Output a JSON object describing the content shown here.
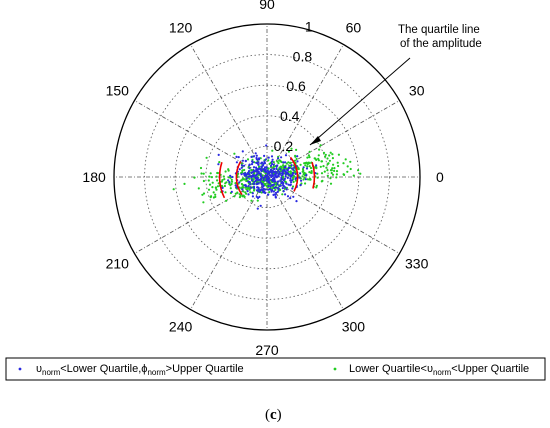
{
  "chart_data": {
    "type": "scatter",
    "projection": "polar",
    "title": "",
    "angular_ticks": [
      "0",
      "30",
      "60",
      "90",
      "120",
      "150",
      "180",
      "210",
      "240",
      "270",
      "300",
      "330"
    ],
    "radial_ticks": [
      "0.2",
      "0.4",
      "0.6",
      "0.8",
      "1"
    ],
    "rlim": [
      0,
      1
    ],
    "grid": true,
    "annotation": {
      "line1": "The quartile line",
      "line2": "of the amplitude",
      "quartile_radii": [
        0.2,
        0.31
      ]
    },
    "series": [
      {
        "name_parts": [
          "υ",
          "norm",
          "<Lower Quartile,ϕ",
          "norm",
          ">Upper Quartile"
        ],
        "color": "#2a2ae0",
        "marker": "dot",
        "cluster": {
          "r_center": 0.0,
          "r_spread": 0.22,
          "theta_main_deg": [
            0,
            180
          ],
          "count": 380
        }
      },
      {
        "name_parts": [
          "Lower Quartile<υ",
          "norm",
          "<Upper Quartile"
        ],
        "color": "#22cc22",
        "marker": "dot",
        "cluster": {
          "r_center": 0.15,
          "r_spread": 0.55,
          "theta_main_deg": [
            10,
            190
          ],
          "count": 520
        }
      }
    ],
    "quartile_color": "#ee0000",
    "legend_placement": "bottom"
  },
  "caption": {
    "open": "(",
    "letter": "c",
    "close": ")"
  }
}
